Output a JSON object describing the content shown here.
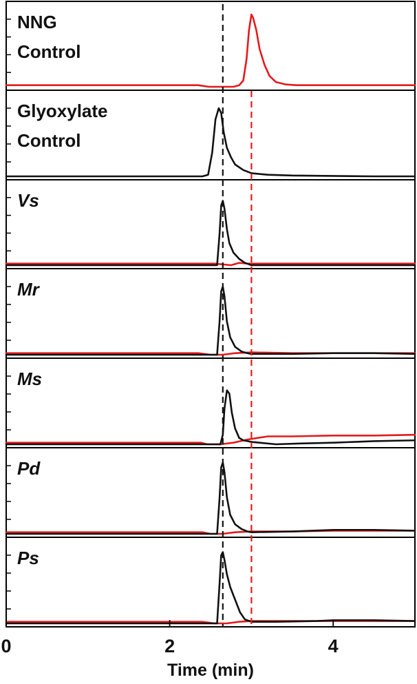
{
  "chart_data": {
    "type": "line",
    "xlabel": "Time (min)",
    "ylabel": "",
    "xlim": [
      0,
      5
    ],
    "x_ticks": [
      0,
      2,
      4
    ],
    "x_tick_labels": [
      "0",
      "2",
      "4"
    ],
    "colors": {
      "black": "#111111",
      "red": "#e31a1c",
      "axis": "#000000"
    },
    "reference_lines": [
      {
        "x": 2.65,
        "color": "black",
        "style": "dashed"
      },
      {
        "x": 3.0,
        "color": "red",
        "style": "dashed"
      }
    ],
    "panels": [
      {
        "label": "NNG",
        "label_line2": "Control",
        "italic": false,
        "series": [
          {
            "color": "red",
            "x": [
              0.0,
              1.0,
              2.0,
              2.35,
              2.48,
              2.62,
              2.78,
              2.85,
              2.9,
              2.94,
              2.97,
              3.0,
              3.02,
              3.06,
              3.1,
              3.16,
              3.22,
              3.3,
              3.42,
              3.55,
              4.0,
              5.0
            ],
            "y": [
              0.02,
              0.02,
              0.02,
              0.02,
              0.0,
              0.0,
              0.0,
              0.02,
              0.08,
              0.35,
              0.72,
              0.92,
              0.88,
              0.72,
              0.48,
              0.28,
              0.14,
              0.06,
              0.03,
              0.02,
              0.02,
              0.02
            ]
          }
        ]
      },
      {
        "label": "Glyoxylate",
        "label_line2": "Control",
        "italic": false,
        "series": [
          {
            "color": "black",
            "x": [
              0.0,
              1.0,
              2.0,
              2.4,
              2.47,
              2.52,
              2.56,
              2.6,
              2.63,
              2.66,
              2.7,
              2.75,
              2.8,
              2.9,
              3.0,
              3.2,
              3.5,
              4.0,
              4.5,
              5.0
            ],
            "y": [
              0.0,
              0.0,
              0.0,
              0.0,
              0.02,
              0.3,
              0.72,
              0.86,
              0.8,
              0.56,
              0.36,
              0.24,
              0.15,
              0.08,
              0.04,
              0.02,
              0.01,
              0.005,
              0.0,
              0.0
            ]
          }
        ]
      },
      {
        "label": "Vs",
        "label_line2": "",
        "italic": true,
        "series": [
          {
            "color": "red",
            "x": [
              0.0,
              1.0,
              2.0,
              2.55,
              2.75,
              2.85,
              2.95,
              3.0,
              4.0,
              5.0
            ],
            "y": [
              0.02,
              0.02,
              0.02,
              0.02,
              0.0,
              0.03,
              0.02,
              0.02,
              0.02,
              0.02
            ]
          },
          {
            "color": "black",
            "x": [
              0.0,
              1.0,
              2.0,
              2.58,
              2.61,
              2.63,
              2.65,
              2.67,
              2.7,
              2.73,
              2.78,
              2.85,
              2.92,
              3.0,
              4.0,
              5.0
            ],
            "y": [
              0.0,
              0.0,
              0.0,
              0.0,
              0.4,
              0.76,
              0.82,
              0.72,
              0.46,
              0.28,
              0.16,
              0.08,
              0.03,
              0.0,
              0.0,
              0.0
            ]
          }
        ]
      },
      {
        "label": "Mr",
        "label_line2": "",
        "italic": true,
        "series": [
          {
            "color": "red",
            "x": [
              0.0,
              1.0,
              2.0,
              2.35,
              2.5,
              2.65,
              2.8,
              3.0,
              3.5,
              4.0,
              4.5,
              5.0
            ],
            "y": [
              0.02,
              0.02,
              0.02,
              0.02,
              0.0,
              0.0,
              0.02,
              0.03,
              0.02,
              0.02,
              0.02,
              0.02
            ]
          },
          {
            "color": "black",
            "x": [
              0.0,
              1.0,
              2.0,
              2.58,
              2.61,
              2.63,
              2.65,
              2.67,
              2.7,
              2.74,
              2.8,
              2.88,
              2.95,
              3.0,
              3.5,
              4.0,
              4.5,
              5.0
            ],
            "y": [
              0.0,
              0.0,
              0.0,
              0.0,
              0.42,
              0.8,
              0.86,
              0.74,
              0.42,
              0.22,
              0.1,
              0.04,
              0.02,
              0.01,
              0.01,
              0.02,
              0.02,
              0.01
            ]
          }
        ]
      },
      {
        "label": "Ms",
        "label_line2": "",
        "italic": true,
        "series": [
          {
            "color": "red",
            "x": [
              0.0,
              0.5,
              1.0,
              1.5,
              2.0,
              2.25,
              2.38,
              2.46,
              2.62,
              2.78,
              2.95,
              3.2,
              3.5,
              4.0,
              4.5,
              5.0
            ],
            "y": [
              0.02,
              0.02,
              0.02,
              0.02,
              0.02,
              0.02,
              0.02,
              0.0,
              0.0,
              0.02,
              0.06,
              0.1,
              0.1,
              0.11,
              0.11,
              0.12
            ]
          },
          {
            "color": "black",
            "x": [
              0.0,
              1.0,
              2.0,
              2.62,
              2.65,
              2.67,
              2.7,
              2.73,
              2.76,
              2.8,
              2.85,
              2.9,
              2.95,
              3.0,
              3.1,
              3.3,
              3.6,
              4.0,
              4.5,
              5.0
            ],
            "y": [
              0.0,
              0.0,
              0.0,
              0.0,
              0.12,
              0.45,
              0.68,
              0.64,
              0.4,
              0.2,
              0.08,
              0.05,
              0.04,
              0.03,
              0.02,
              0.0,
              0.01,
              0.02,
              0.04,
              0.05
            ]
          }
        ]
      },
      {
        "label": "Pd",
        "label_line2": "",
        "italic": true,
        "series": [
          {
            "color": "red",
            "x": [
              0.0,
              1.0,
              2.0,
              2.4,
              2.5,
              2.65,
              2.8,
              3.0,
              3.5,
              4.0,
              4.5,
              5.0
            ],
            "y": [
              0.02,
              0.02,
              0.02,
              0.02,
              0.0,
              0.0,
              0.02,
              0.03,
              0.03,
              0.04,
              0.04,
              0.04
            ]
          },
          {
            "color": "black",
            "x": [
              0.0,
              1.0,
              2.0,
              2.58,
              2.61,
              2.63,
              2.65,
              2.67,
              2.7,
              2.74,
              2.8,
              2.88,
              2.95,
              3.0,
              3.5,
              4.0,
              4.5,
              5.0
            ],
            "y": [
              0.0,
              0.0,
              0.0,
              0.0,
              0.45,
              0.84,
              0.9,
              0.78,
              0.46,
              0.24,
              0.12,
              0.06,
              0.03,
              0.02,
              0.03,
              0.05,
              0.05,
              0.04
            ]
          }
        ]
      },
      {
        "label": "Ps",
        "label_line2": "",
        "italic": true,
        "series": [
          {
            "color": "red",
            "x": [
              0.0,
              1.0,
              2.0,
              2.4,
              2.55,
              2.7,
              2.85,
              3.0,
              3.5,
              4.0,
              4.5,
              5.0
            ],
            "y": [
              0.02,
              0.02,
              0.02,
              0.02,
              0.0,
              0.0,
              0.02,
              0.03,
              0.03,
              0.03,
              0.03,
              0.03
            ]
          },
          {
            "color": "black",
            "x": [
              0.0,
              1.0,
              2.0,
              2.58,
              2.61,
              2.63,
              2.65,
              2.67,
              2.7,
              2.74,
              2.8,
              2.86,
              2.92,
              3.0,
              3.3,
              3.8,
              4.0,
              4.5,
              5.0
            ],
            "y": [
              0.0,
              0.0,
              0.0,
              0.0,
              0.5,
              0.86,
              0.9,
              0.8,
              0.62,
              0.46,
              0.3,
              0.14,
              0.05,
              0.02,
              0.02,
              0.03,
              0.04,
              0.04,
              0.03
            ]
          }
        ]
      }
    ]
  }
}
